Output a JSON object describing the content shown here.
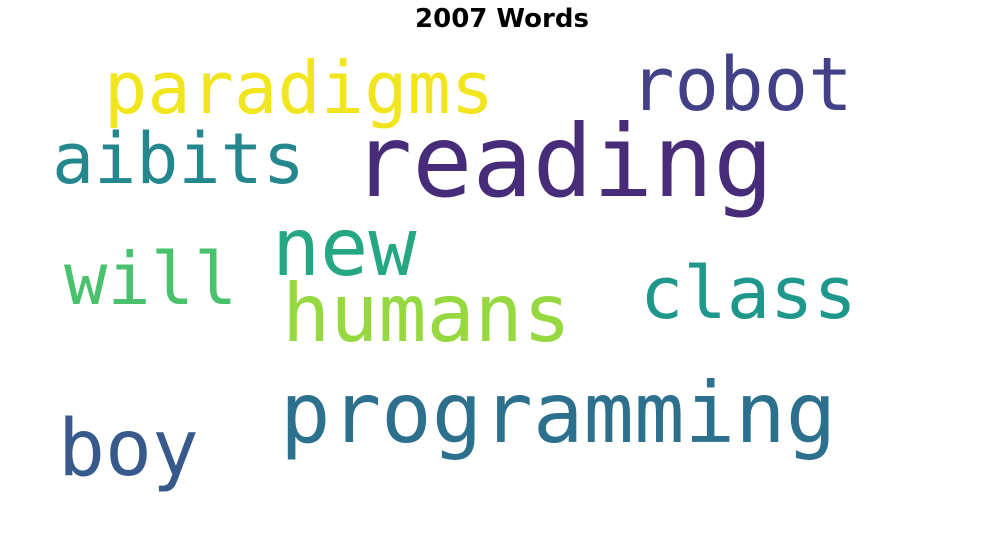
{
  "title": "2007 Words",
  "words": [
    {
      "text": "paradigms",
      "color": "#f1e51d"
    },
    {
      "text": "robot",
      "color": "#424086"
    },
    {
      "text": "reading",
      "color": "#472c7a"
    },
    {
      "text": "aibits",
      "color": "#24878e"
    },
    {
      "text": "new",
      "color": "#26a784"
    },
    {
      "text": "will",
      "color": "#4ac16d"
    },
    {
      "text": "class",
      "color": "#1f988b"
    },
    {
      "text": "humans",
      "color": "#95d840"
    },
    {
      "text": "programming",
      "color": "#2d708e"
    },
    {
      "text": "boy",
      "color": "#38598c"
    }
  ]
}
